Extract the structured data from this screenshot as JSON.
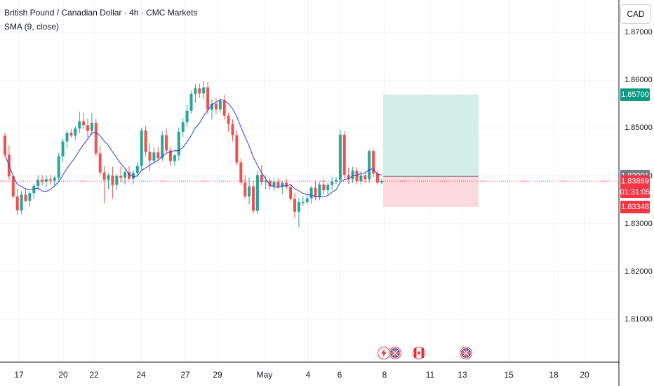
{
  "header": {
    "title": "British Pound / Canadian Dollar · 4h · CMC Markets",
    "indicator": "SMA (9, close)"
  },
  "currency_button": "CAD",
  "price_tags": {
    "target": "1.85700",
    "entry": "1.83991",
    "last": "1.83889",
    "countdown": "01:31:05",
    "stop": "1.83348"
  },
  "events": [
    {
      "icon": "lightning-icon"
    },
    {
      "icon": "uk-flag-icon"
    },
    {
      "icon": "canada-flag-icon"
    },
    {
      "icon": "uk-flag-icon"
    }
  ],
  "colors": {
    "up": "#26a69a",
    "down": "#ef5350",
    "sma": "#2e3ae0",
    "profit_zone": "#d5ede8",
    "loss_zone": "#fbdadd",
    "last_price": "#f23645",
    "entry_tag": "#787b86",
    "target_tag": "#089981"
  },
  "chart_data": {
    "type": "candlestick",
    "symbol": "British Pound / Canadian Dollar",
    "timeframe": "4h",
    "source": "CMC Markets",
    "y_ticks": [
      "1.87000",
      "1.86000",
      "1.85000",
      "1.84000",
      "1.83000",
      "1.82000",
      "1.81000"
    ],
    "y_tick_values": [
      1.87,
      1.86,
      1.85,
      1.84,
      1.83,
      1.82,
      1.81
    ],
    "ylim": [
      1.799,
      1.878
    ],
    "x_ticks": [
      "17",
      "20",
      "22",
      "24",
      "27",
      "29",
      "May",
      "4",
      "6",
      "8",
      "11",
      "13",
      "15",
      "18",
      "20"
    ],
    "current_price": 1.83889,
    "position": {
      "type": "long",
      "entry": 1.83991,
      "target": 1.857,
      "stop": 1.83348
    },
    "candles": [
      [
        1.8484,
        1.849,
        1.8441,
        1.8444
      ],
      [
        1.8444,
        1.8463,
        1.8392,
        1.8399
      ],
      [
        1.8399,
        1.8401,
        1.8353,
        1.8357
      ],
      [
        1.8357,
        1.8372,
        1.8319,
        1.8328
      ],
      [
        1.8328,
        1.8368,
        1.832,
        1.8361
      ],
      [
        1.8361,
        1.8372,
        1.8345,
        1.8348
      ],
      [
        1.8348,
        1.8368,
        1.8336,
        1.8364
      ],
      [
        1.8364,
        1.8383,
        1.8352,
        1.8379
      ],
      [
        1.8379,
        1.8401,
        1.8371,
        1.8392
      ],
      [
        1.8392,
        1.8402,
        1.838,
        1.8388
      ],
      [
        1.8388,
        1.8401,
        1.8376,
        1.8393
      ],
      [
        1.8393,
        1.8402,
        1.8382,
        1.839
      ],
      [
        1.839,
        1.8401,
        1.8378,
        1.8396
      ],
      [
        1.8396,
        1.8448,
        1.839,
        1.8441
      ],
      [
        1.8441,
        1.8478,
        1.8429,
        1.8472
      ],
      [
        1.8472,
        1.8496,
        1.8458,
        1.849
      ],
      [
        1.849,
        1.8498,
        1.8479,
        1.8484
      ],
      [
        1.8484,
        1.8504,
        1.8475,
        1.8499
      ],
      [
        1.8499,
        1.8534,
        1.849,
        1.8514
      ],
      [
        1.8514,
        1.8532,
        1.8498,
        1.8506
      ],
      [
        1.8506,
        1.852,
        1.848,
        1.8494
      ],
      [
        1.8494,
        1.8532,
        1.8484,
        1.8511
      ],
      [
        1.8511,
        1.852,
        1.8441,
        1.8447
      ],
      [
        1.8447,
        1.8462,
        1.8401,
        1.8407
      ],
      [
        1.8407,
        1.842,
        1.8343,
        1.8392
      ],
      [
        1.8392,
        1.8406,
        1.8372,
        1.8401
      ],
      [
        1.8401,
        1.8419,
        1.8353,
        1.8381
      ],
      [
        1.8381,
        1.8404,
        1.837,
        1.84
      ],
      [
        1.84,
        1.8419,
        1.8387,
        1.8396
      ],
      [
        1.8396,
        1.8413,
        1.8382,
        1.8408
      ],
      [
        1.8408,
        1.8421,
        1.8391,
        1.8394
      ],
      [
        1.8394,
        1.8412,
        1.8382,
        1.8406
      ],
      [
        1.8406,
        1.8429,
        1.8398,
        1.8421
      ],
      [
        1.8421,
        1.8501,
        1.841,
        1.8495
      ],
      [
        1.8495,
        1.8504,
        1.8441,
        1.845
      ],
      [
        1.845,
        1.8468,
        1.8412,
        1.8432
      ],
      [
        1.8432,
        1.8459,
        1.8425,
        1.8449
      ],
      [
        1.8449,
        1.8461,
        1.8432,
        1.8437
      ],
      [
        1.8437,
        1.8494,
        1.843,
        1.8485
      ],
      [
        1.8485,
        1.8499,
        1.8449,
        1.8453
      ],
      [
        1.8453,
        1.8461,
        1.8421,
        1.8431
      ],
      [
        1.8431,
        1.8446,
        1.8421,
        1.8443
      ],
      [
        1.8443,
        1.8501,
        1.8432,
        1.8492
      ],
      [
        1.8492,
        1.8521,
        1.8481,
        1.8512
      ],
      [
        1.8512,
        1.8548,
        1.8502,
        1.8536
      ],
      [
        1.8536,
        1.8578,
        1.853,
        1.8571
      ],
      [
        1.8571,
        1.8592,
        1.8553,
        1.8583
      ],
      [
        1.8583,
        1.8593,
        1.8563,
        1.8572
      ],
      [
        1.8572,
        1.8598,
        1.8561,
        1.8585
      ],
      [
        1.8585,
        1.8596,
        1.8528,
        1.8538
      ],
      [
        1.8538,
        1.856,
        1.8518,
        1.8551
      ],
      [
        1.8551,
        1.8563,
        1.8529,
        1.8539
      ],
      [
        1.8539,
        1.8562,
        1.8532,
        1.8557
      ],
      [
        1.8557,
        1.8569,
        1.8518,
        1.8526
      ],
      [
        1.8526,
        1.8532,
        1.8492,
        1.8508
      ],
      [
        1.8508,
        1.8518,
        1.8472,
        1.8485
      ],
      [
        1.8485,
        1.8495,
        1.8422,
        1.8428
      ],
      [
        1.8428,
        1.8436,
        1.8381,
        1.8386
      ],
      [
        1.8386,
        1.8402,
        1.8351,
        1.8357
      ],
      [
        1.8357,
        1.8397,
        1.834,
        1.8378
      ],
      [
        1.8378,
        1.8391,
        1.8321,
        1.8327
      ],
      [
        1.8327,
        1.8411,
        1.832,
        1.8402
      ],
      [
        1.8402,
        1.8423,
        1.838,
        1.8387
      ],
      [
        1.8387,
        1.8401,
        1.8372,
        1.839
      ],
      [
        1.839,
        1.8396,
        1.8371,
        1.8378
      ],
      [
        1.8378,
        1.8396,
        1.8368,
        1.8388
      ],
      [
        1.8388,
        1.8395,
        1.8372,
        1.8377
      ],
      [
        1.8377,
        1.839,
        1.8362,
        1.8386
      ],
      [
        1.8386,
        1.8394,
        1.8372,
        1.8377
      ],
      [
        1.8377,
        1.8383,
        1.8348,
        1.8352
      ],
      [
        1.8352,
        1.8364,
        1.8312,
        1.8325
      ],
      [
        1.8325,
        1.8353,
        1.8292,
        1.8345
      ],
      [
        1.8345,
        1.8358,
        1.8337,
        1.8345
      ],
      [
        1.8345,
        1.8364,
        1.834,
        1.8353
      ],
      [
        1.8353,
        1.8379,
        1.8342,
        1.8375
      ],
      [
        1.8375,
        1.839,
        1.8349,
        1.8355
      ],
      [
        1.8355,
        1.8388,
        1.8349,
        1.8382
      ],
      [
        1.8382,
        1.8392,
        1.8362,
        1.837
      ],
      [
        1.837,
        1.8386,
        1.8359,
        1.8381
      ],
      [
        1.8381,
        1.8398,
        1.837,
        1.8388
      ],
      [
        1.8388,
        1.8398,
        1.8383,
        1.8392
      ],
      [
        1.8392,
        1.8496,
        1.8385,
        1.8486
      ],
      [
        1.8486,
        1.8493,
        1.8393,
        1.8402
      ],
      [
        1.8402,
        1.8418,
        1.8383,
        1.8393
      ],
      [
        1.8393,
        1.8419,
        1.8385,
        1.8411
      ],
      [
        1.8411,
        1.8418,
        1.8382,
        1.8389
      ],
      [
        1.8389,
        1.841,
        1.8382,
        1.8401
      ],
      [
        1.8401,
        1.8407,
        1.8385,
        1.8393
      ],
      [
        1.8393,
        1.8455,
        1.8386,
        1.8452
      ],
      [
        1.8452,
        1.8456,
        1.8398,
        1.8405
      ],
      [
        1.8405,
        1.8412,
        1.8381,
        1.8386
      ],
      [
        1.8386,
        1.8394,
        1.8383,
        1.8389
      ]
    ],
    "sma_period": 9
  }
}
